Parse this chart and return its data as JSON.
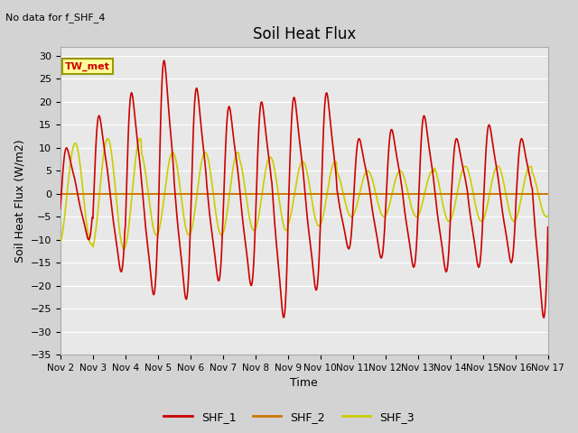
{
  "title": "Soil Heat Flux",
  "ylabel": "Soil Heat Flux (W/m2)",
  "xlabel": "Time",
  "no_data_text": "No data for f_SHF_4",
  "tw_met_label": "TW_met",
  "ylim": [
    -35,
    32
  ],
  "yticks": [
    -35,
    -30,
    -25,
    -20,
    -15,
    -10,
    -5,
    0,
    5,
    10,
    15,
    20,
    25,
    30
  ],
  "xtick_labels": [
    "Nov 2",
    "Nov 3",
    "Nov 4",
    "Nov 5",
    "Nov 6",
    "Nov 7",
    "Nov 8",
    "Nov 9",
    "Nov 10",
    "Nov 11",
    "Nov 12",
    "Nov 13",
    "Nov 14",
    "Nov 15",
    "Nov 16",
    "Nov 17"
  ],
  "legend_labels": [
    "SHF_1",
    "SHF_2",
    "SHF_3"
  ],
  "legend_colors": [
    "#cc0000",
    "#cc7700",
    "#cccc00"
  ],
  "background_color": "#d3d3d3",
  "plot_bg_color": "#e8e8e8",
  "grid_color": "#ffffff",
  "shf1_color": "#cc0000",
  "shf2_color": "#cc7700",
  "shf3_color": "#cccc00",
  "shf1_lw": 1.2,
  "shf2_lw": 1.2,
  "shf3_lw": 1.2
}
